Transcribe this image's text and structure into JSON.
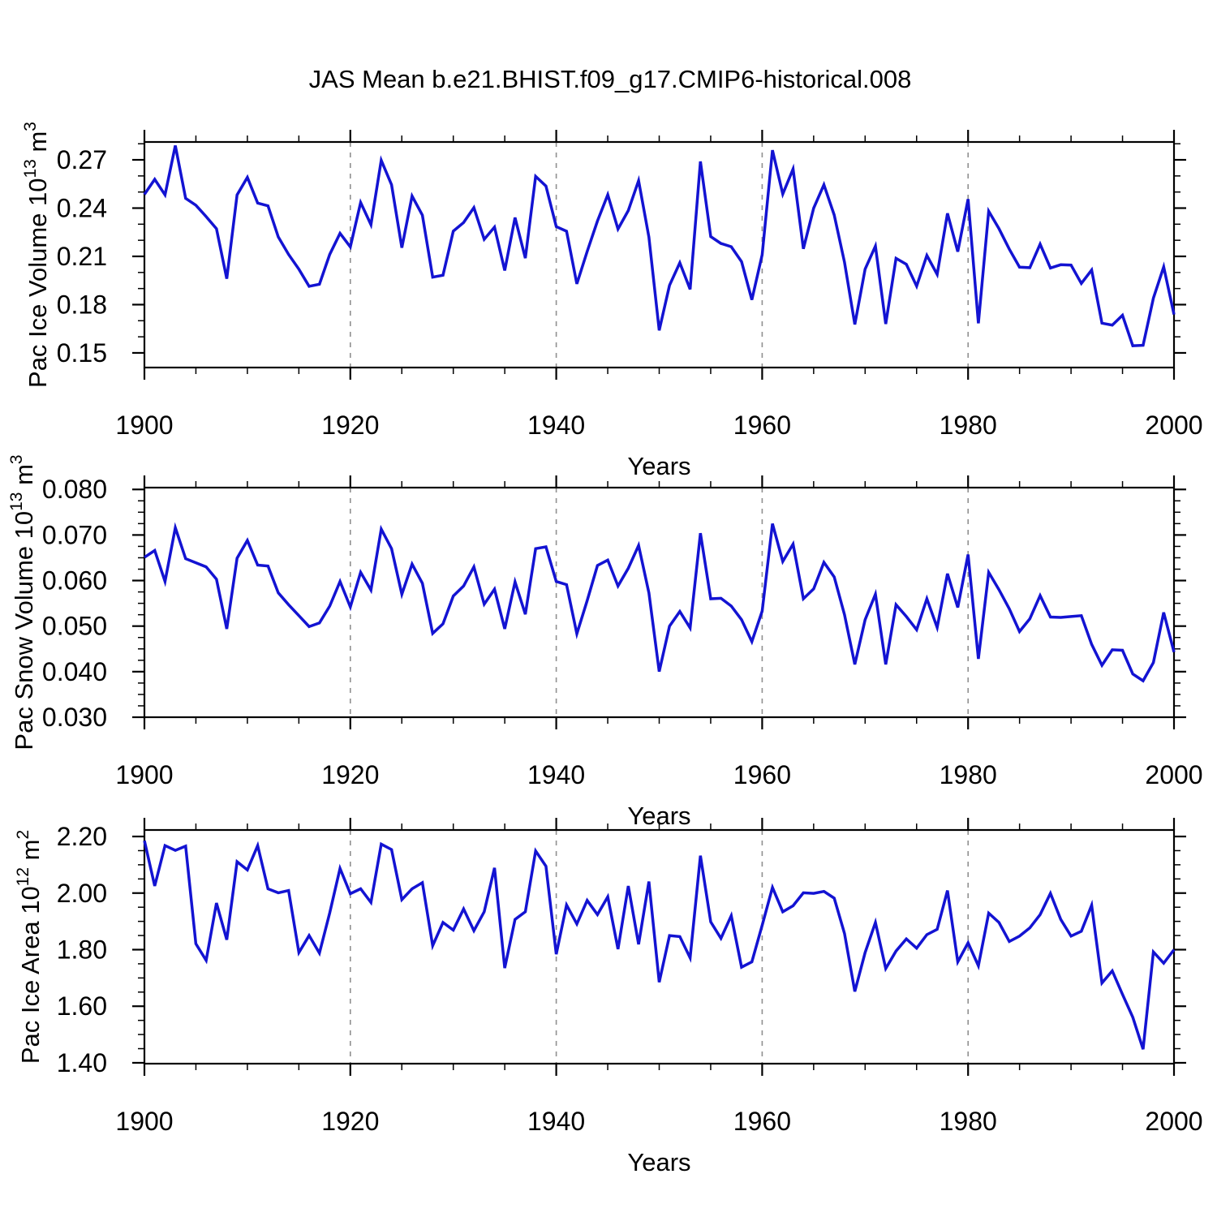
{
  "title": "JAS Mean b.e21.BHIST.f09_g17.CMIP6-historical.008",
  "line_color": "#1313d2",
  "grid_color": "#909090",
  "frame_color": "#000000",
  "chart_data": [
    {
      "type": "line",
      "xlabel": "Years",
      "ylabel": {
        "base": "Pac Ice Volume 10",
        "exp": "13",
        "unit": " m",
        "unit_exp": "3"
      },
      "xlim": [
        1900,
        2000
      ],
      "ylim": [
        0.1409,
        0.2811
      ],
      "x_start": 1900,
      "x_step": 1,
      "xticks": {
        "major": [
          1900,
          1920,
          1940,
          1960,
          1980,
          2000
        ],
        "labels": [
          "1900",
          "1920",
          "1940",
          "1960",
          "1980",
          "2000"
        ],
        "minor_step": 5
      },
      "yticks": {
        "major": [
          0.15,
          0.18,
          0.21,
          0.24,
          0.27
        ],
        "labels": [
          "0.15",
          "0.18",
          "0.21",
          "0.24",
          "0.27"
        ],
        "minor_step": 0.01
      },
      "gridlines_x": [
        1920,
        1940,
        1960,
        1980
      ],
      "values": [
        0.2485,
        0.2579,
        0.2482,
        0.2789,
        0.2461,
        0.2418,
        0.2347,
        0.2272,
        0.1961,
        0.2482,
        0.2591,
        0.2431,
        0.2414,
        0.2221,
        0.2112,
        0.202,
        0.1914,
        0.1927,
        0.2112,
        0.2243,
        0.2159,
        0.2435,
        0.2297,
        0.2697,
        0.2545,
        0.2154,
        0.2475,
        0.2356,
        0.1971,
        0.1983,
        0.2257,
        0.231,
        0.2403,
        0.2206,
        0.2282,
        0.2012,
        0.2341,
        0.2089,
        0.2597,
        0.2537,
        0.2285,
        0.2256,
        0.1929,
        0.213,
        0.232,
        0.2483,
        0.227,
        0.2385,
        0.2571,
        0.222,
        0.164,
        0.192,
        0.206,
        0.1895,
        0.269,
        0.2223,
        0.218,
        0.216,
        0.2067,
        0.183,
        0.211,
        0.276,
        0.2487,
        0.2643,
        0.2147,
        0.24,
        0.2545,
        0.2357,
        0.2063,
        0.1677,
        0.2021,
        0.2164,
        0.168,
        0.2088,
        0.2051,
        0.1915,
        0.2106,
        0.1988,
        0.2367,
        0.2129,
        0.2456,
        0.1684,
        0.2381,
        0.2272,
        0.2145,
        0.2033,
        0.203,
        0.2176,
        0.2028,
        0.2048,
        0.2046,
        0.1932,
        0.2015,
        0.1685,
        0.1673,
        0.1734,
        0.1544,
        0.1547,
        0.184,
        0.2035,
        0.1739
      ]
    },
    {
      "type": "line",
      "xlabel": "Years",
      "ylabel": {
        "base": "Pac Snow Volume 10",
        "exp": "13",
        "unit": " m",
        "unit_exp": "3"
      },
      "xlim": [
        1900,
        2000
      ],
      "ylim": [
        0.03,
        0.0804
      ],
      "x_start": 1900,
      "x_step": 1,
      "xticks": {
        "major": [
          1900,
          1920,
          1940,
          1960,
          1980,
          2000
        ],
        "labels": [
          "1900",
          "1920",
          "1940",
          "1960",
          "1980",
          "2000"
        ],
        "minor_step": 5
      },
      "yticks": {
        "major": [
          0.03,
          0.04,
          0.05,
          0.06,
          0.07,
          0.08
        ],
        "labels": [
          "0.030",
          "0.040",
          "0.050",
          "0.060",
          "0.070",
          "0.080"
        ],
        "minor_step": 0.0025
      },
      "gridlines_x": [
        1920,
        1940,
        1960,
        1980
      ],
      "values": [
        0.0651,
        0.0666,
        0.0598,
        0.0716,
        0.0648,
        0.0639,
        0.063,
        0.0603,
        0.0494,
        0.0649,
        0.0688,
        0.0634,
        0.0632,
        0.0573,
        0.0547,
        0.0523,
        0.0499,
        0.0507,
        0.0544,
        0.0598,
        0.0542,
        0.0618,
        0.0579,
        0.0713,
        0.067,
        0.057,
        0.0636,
        0.0594,
        0.0484,
        0.0505,
        0.0566,
        0.0588,
        0.063,
        0.0548,
        0.0581,
        0.0494,
        0.0597,
        0.0526,
        0.067,
        0.0674,
        0.0598,
        0.0591,
        0.0483,
        0.0556,
        0.0633,
        0.0645,
        0.0588,
        0.0627,
        0.0677,
        0.0573,
        0.04,
        0.05,
        0.0532,
        0.0496,
        0.0704,
        0.056,
        0.0561,
        0.0544,
        0.0514,
        0.0466,
        0.0533,
        0.0725,
        0.0642,
        0.068,
        0.056,
        0.0582,
        0.064,
        0.0608,
        0.0525,
        0.0416,
        0.0514,
        0.057,
        0.0416,
        0.0547,
        0.0521,
        0.0492,
        0.056,
        0.0497,
        0.0615,
        0.0541,
        0.0657,
        0.0428,
        0.0618,
        0.058,
        0.0538,
        0.0488,
        0.0516,
        0.0567,
        0.052,
        0.0519,
        0.0521,
        0.0523,
        0.046,
        0.0414,
        0.0448,
        0.0447,
        0.0395,
        0.038,
        0.042,
        0.053,
        0.0443
      ]
    },
    {
      "type": "line",
      "xlabel": "Years",
      "ylabel": {
        "base": "Pac Ice Area 10",
        "exp": "12",
        "unit": " m",
        "unit_exp": "2"
      },
      "xlim": [
        1900,
        2000
      ],
      "ylim": [
        1.397,
        2.223
      ],
      "x_start": 1900,
      "x_step": 1,
      "xticks": {
        "major": [
          1900,
          1920,
          1940,
          1960,
          1980,
          2000
        ],
        "labels": [
          "1900",
          "1920",
          "1940",
          "1960",
          "1980",
          "2000"
        ],
        "minor_step": 5
      },
      "yticks": {
        "major": [
          1.4,
          1.6,
          1.8,
          2.0,
          2.2
        ],
        "labels": [
          "1.40",
          "1.60",
          "1.80",
          "2.00",
          "2.20"
        ],
        "minor_step": 0.05
      },
      "gridlines_x": [
        1920,
        1940,
        1960,
        1980
      ],
      "values": [
        2.185,
        2.025,
        2.168,
        2.151,
        2.166,
        1.821,
        1.762,
        1.965,
        1.835,
        2.111,
        2.082,
        2.168,
        2.015,
        2.001,
        2.009,
        1.79,
        1.85,
        1.788,
        1.93,
        2.087,
        1.998,
        2.015,
        1.967,
        2.173,
        2.154,
        1.977,
        2.015,
        2.037,
        1.814,
        1.896,
        1.869,
        1.944,
        1.867,
        1.934,
        2.089,
        1.735,
        1.907,
        1.934,
        2.149,
        2.095,
        1.784,
        1.958,
        1.891,
        1.974,
        1.924,
        1.987,
        1.802,
        2.025,
        1.819,
        2.041,
        1.685,
        1.85,
        1.846,
        1.771,
        2.132,
        1.898,
        1.84,
        1.92,
        1.738,
        1.757,
        1.886,
        2.02,
        1.934,
        1.955,
        2.001,
        1.999,
        2.006,
        1.982,
        1.857,
        1.652,
        1.79,
        1.896,
        1.733,
        1.795,
        1.838,
        1.805,
        1.853,
        1.872,
        2.009,
        1.757,
        1.824,
        1.743,
        1.929,
        1.896,
        1.829,
        1.848,
        1.877,
        1.924,
        1.999,
        1.907,
        1.848,
        1.865,
        1.957,
        1.682,
        1.725,
        1.642,
        1.561,
        1.448,
        1.792,
        1.752,
        1.8
      ]
    }
  ]
}
